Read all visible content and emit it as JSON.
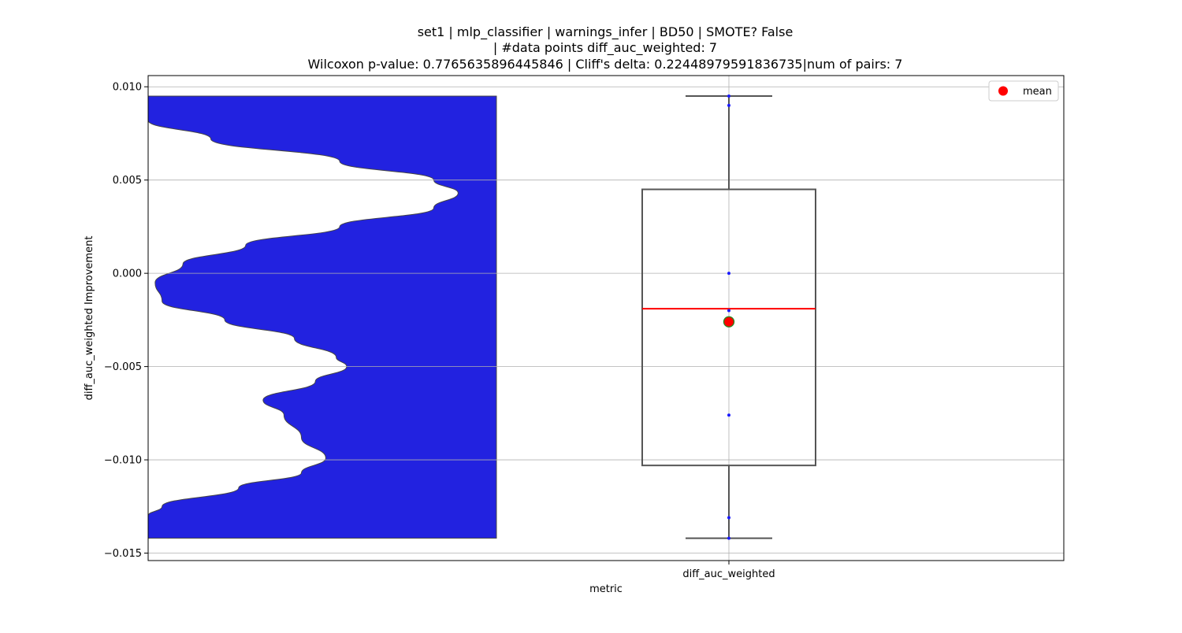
{
  "chart_data": {
    "type": "box",
    "title_lines": [
      "set1 | mlp_classifier | warnings_infer | BD50 | SMOTE? False",
      "| #data points diff_auc_weighted: 7",
      "Wilcoxon p-value: 0.7765635896445846 | Cliff's delta: 0.22448979591836735|num of pairs: 7"
    ],
    "xlabel": "metric",
    "ylabel": "diff_auc_weighted Improvement",
    "ylim": [
      -0.0154,
      0.0106
    ],
    "yticks": [
      0.01,
      0.005,
      0.0,
      -0.005,
      -0.01,
      -0.015
    ],
    "ytick_labels": [
      "0.010",
      "0.005",
      "0.000",
      "−0.005",
      "−0.010",
      "−0.015"
    ],
    "categories": [
      "diff_auc_weighted"
    ],
    "grid": true,
    "legend": {
      "placement": "top-right",
      "entries": [
        {
          "label": "mean",
          "color": "#ff0000"
        }
      ]
    },
    "colors": {
      "violin": "#2222e0",
      "median": "#ff0000",
      "mean_fill": "#ff0000",
      "mean_edge": "#228B22",
      "box_edge": "#555555",
      "points": "#1a1aff"
    },
    "points": [
      0.0095,
      0.009,
      0.0,
      -0.002,
      -0.0076,
      -0.0131,
      -0.0142
    ],
    "box": {
      "whisker_low": -0.0142,
      "q1": -0.0103,
      "median": -0.0019,
      "q3": 0.0045,
      "whisker_high": 0.0095,
      "mean": -0.0026
    },
    "violin": {
      "extent": [
        -0.0142,
        0.0095
      ],
      "density_profile": [
        {
          "y": 0.0095,
          "d": 0.0
        },
        {
          "y": 0.0082,
          "d": 0.0
        },
        {
          "y": 0.0072,
          "d": 0.18
        },
        {
          "y": 0.006,
          "d": 0.55
        },
        {
          "y": 0.005,
          "d": 0.82
        },
        {
          "y": 0.0043,
          "d": 0.89
        },
        {
          "y": 0.0035,
          "d": 0.82
        },
        {
          "y": 0.0025,
          "d": 0.55
        },
        {
          "y": 0.0015,
          "d": 0.28
        },
        {
          "y": 0.0005,
          "d": 0.1
        },
        {
          "y": -0.0005,
          "d": 0.02
        },
        {
          "y": -0.0015,
          "d": 0.04
        },
        {
          "y": -0.0025,
          "d": 0.22
        },
        {
          "y": -0.0035,
          "d": 0.42
        },
        {
          "y": -0.0045,
          "d": 0.54
        },
        {
          "y": -0.005,
          "d": 0.57
        },
        {
          "y": -0.0058,
          "d": 0.48
        },
        {
          "y": -0.0068,
          "d": 0.33
        },
        {
          "y": -0.0076,
          "d": 0.39
        },
        {
          "y": -0.0088,
          "d": 0.44
        },
        {
          "y": -0.0099,
          "d": 0.51
        },
        {
          "y": -0.0107,
          "d": 0.44
        },
        {
          "y": -0.0115,
          "d": 0.26
        },
        {
          "y": -0.0125,
          "d": 0.04
        },
        {
          "y": -0.013,
          "d": 0.0
        },
        {
          "y": -0.0142,
          "d": 0.0
        }
      ]
    }
  }
}
